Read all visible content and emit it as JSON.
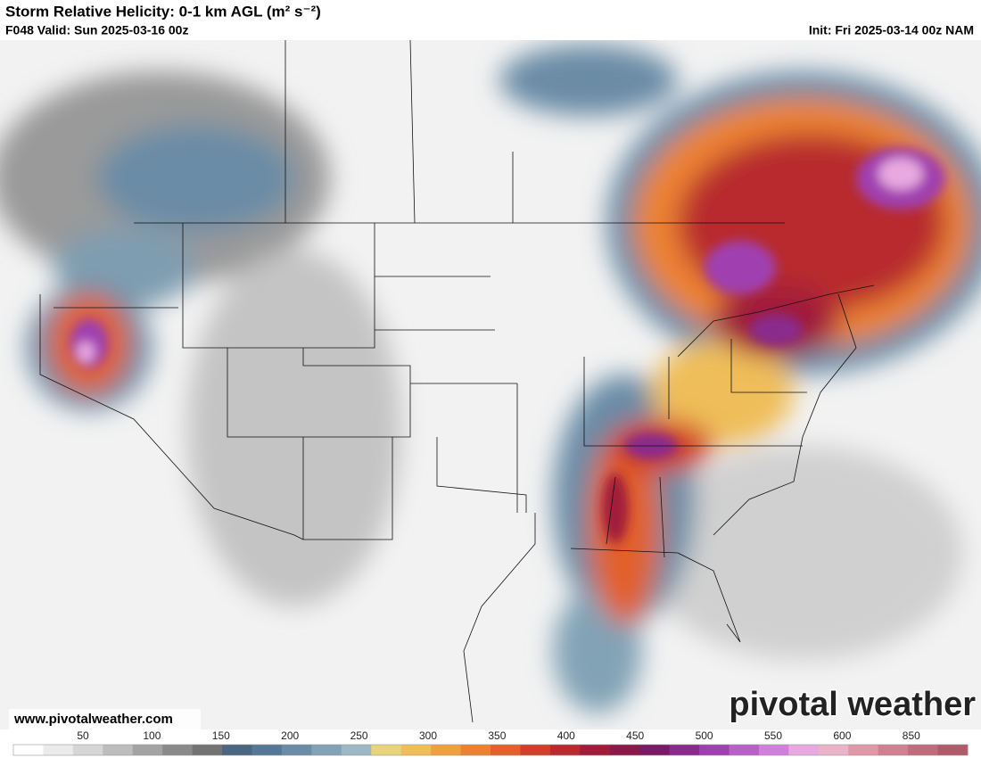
{
  "header": {
    "title": "Storm Relative Helicity: 0-1 km AGL (m² s⁻²)",
    "valid": "F048 Valid: Sun 2025-03-16 00z",
    "init": "Init: Fri 2025-03-14 00z NAM"
  },
  "footer": {
    "website": "www.pivotalweather.com",
    "logo": "pivotal weather"
  },
  "colorbar": {
    "labels": [
      50,
      100,
      150,
      200,
      250,
      300,
      350,
      400,
      450,
      500,
      550,
      600,
      850
    ],
    "colors": [
      "#ffffff",
      "#ebebeb",
      "#d6d6d6",
      "#bdbdbd",
      "#a3a3a3",
      "#8a8a8a",
      "#737373",
      "#4a6680",
      "#557896",
      "#6a8ca6",
      "#82a3b6",
      "#9cb8c4",
      "#e8d47a",
      "#efbe5a",
      "#f0a040",
      "#ec8230",
      "#e2602a",
      "#d04028",
      "#b82a2e",
      "#a01c3a",
      "#8a1848",
      "#7a1a66",
      "#8a2a8c",
      "#a040b0",
      "#b860c8",
      "#d080dc",
      "#e8a8e0",
      "#eab4c8",
      "#de98a8",
      "#d08090",
      "#c06c7c",
      "#b05a6a"
    ]
  }
}
